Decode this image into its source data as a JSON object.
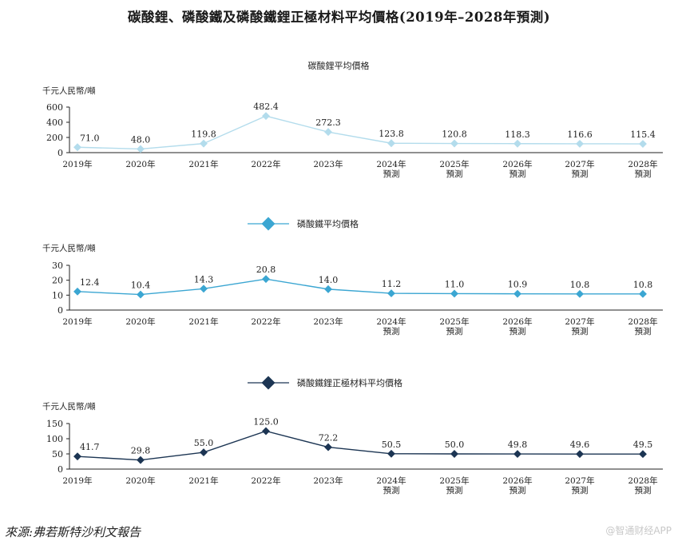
{
  "title": "碳酸鋰、磷酸鐵及磷酸鐵鋰正極材料平均價格(2019年–2028年預測)",
  "source": "來源:弗若斯特沙利文報告",
  "watermark": "@智通财经APP",
  "chart_data": [
    {
      "type": "line",
      "title": "碳酸鋰平均價格",
      "ylabel": "千元人民幣/噸",
      "categories": [
        "2019年",
        "2020年",
        "2021年",
        "2022年",
        "2023年",
        "2024年\n預測",
        "2025年\n預測",
        "2026年\n預測",
        "2027年\n預測",
        "2028年\n預測"
      ],
      "yticks": [
        0,
        200,
        400,
        600
      ],
      "ylim": [
        0,
        600
      ],
      "color": "#b3dcec",
      "legend": "none",
      "series": [
        {
          "values": [
            71.0,
            48.0,
            119.8,
            482.4,
            272.3,
            123.8,
            120.8,
            118.3,
            116.6,
            115.4
          ]
        }
      ],
      "data_labels": [
        "71.0",
        "48.0",
        "119.8",
        "482.4",
        "272.3",
        "123.8",
        "120.8",
        "118.3",
        "116.6",
        "115.4"
      ]
    },
    {
      "type": "line",
      "legend_label": "磷酸鐵平均價格",
      "ylabel": "千元人民幣/噸",
      "categories": [
        "2019年",
        "2020年",
        "2021年",
        "2022年",
        "2023年",
        "2024年\n預測",
        "2025年\n預測",
        "2026年\n預測",
        "2027年\n預測",
        "2028年\n預測"
      ],
      "yticks": [
        0,
        10,
        20,
        30
      ],
      "ylim": [
        0,
        30
      ],
      "color": "#3ba6d2",
      "legend": "top",
      "series": [
        {
          "name": "磷酸鐵平均價格",
          "values": [
            12.4,
            10.4,
            14.3,
            20.8,
            14.0,
            11.2,
            11.0,
            10.9,
            10.8,
            10.8
          ]
        }
      ],
      "data_labels": [
        "12.4",
        "10.4",
        "14.3",
        "20.8",
        "14.0",
        "11.2",
        "11.0",
        "10.9",
        "10.8",
        "10.8"
      ]
    },
    {
      "type": "line",
      "legend_label": "磷酸鐵鋰正極材料平均價格",
      "ylabel": "千元人民幣/噸",
      "categories": [
        "2019年",
        "2020年",
        "2021年",
        "2022年",
        "2023年",
        "2024年\n預測",
        "2025年\n預測",
        "2026年\n預測",
        "2027年\n預測",
        "2028年\n預測"
      ],
      "yticks": [
        0,
        50,
        100,
        150
      ],
      "ylim": [
        0,
        150
      ],
      "color": "#1c3553",
      "legend": "top",
      "series": [
        {
          "name": "磷酸鐵鋰正極材料平均價格",
          "values": [
            41.7,
            29.8,
            55.0,
            125.0,
            72.2,
            50.5,
            50.0,
            49.8,
            49.6,
            49.5
          ]
        }
      ],
      "data_labels": [
        "41.7",
        "29.8",
        "55.0",
        "125.0",
        "72.2",
        "50.5",
        "50.0",
        "49.8",
        "49.6",
        "49.5"
      ]
    }
  ]
}
